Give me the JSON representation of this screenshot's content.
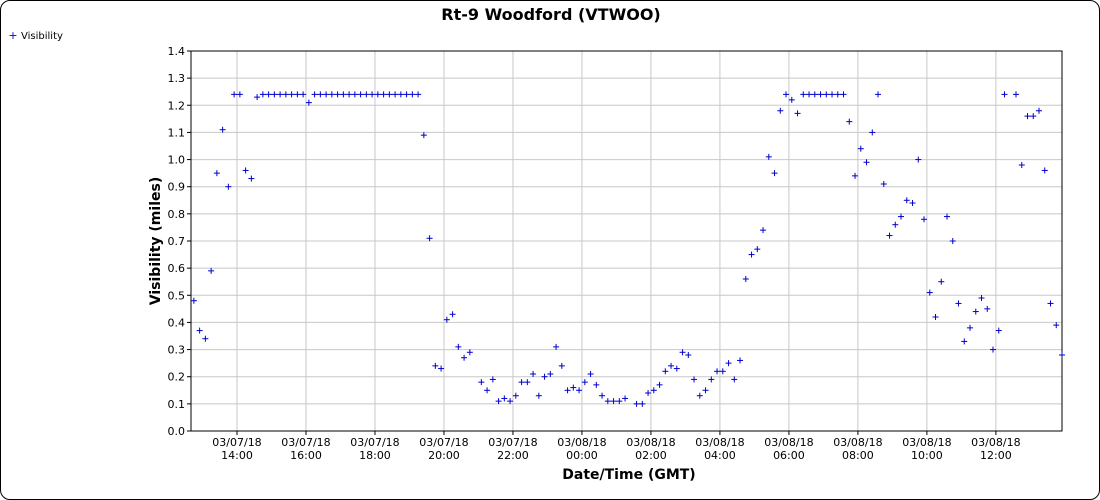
{
  "chart_data": {
    "type": "scatter",
    "title": "Rt-9 Woodford (VTWOO)",
    "xlabel": "Date/Time (GMT)",
    "ylabel": "Visibility (miles)",
    "ylim": [
      0,
      1.4
    ],
    "yticks": [
      "0.0",
      "0.1",
      "0.2",
      "0.3",
      "0.4",
      "0.5",
      "0.6",
      "0.7",
      "0.8",
      "0.9",
      "1.0",
      "1.1",
      "1.2",
      "1.3",
      "1.4"
    ],
    "xlim": [
      "03/07/18 12:40",
      "03/08/18 13:55"
    ],
    "xticks": [
      {
        "date": "03/07/18",
        "time": "14:00"
      },
      {
        "date": "03/07/18",
        "time": "16:00"
      },
      {
        "date": "03/07/18",
        "time": "18:00"
      },
      {
        "date": "03/07/18",
        "time": "20:00"
      },
      {
        "date": "03/07/18",
        "time": "22:00"
      },
      {
        "date": "03/08/18",
        "time": "00:00"
      },
      {
        "date": "03/08/18",
        "time": "02:00"
      },
      {
        "date": "03/08/18",
        "time": "04:00"
      },
      {
        "date": "03/08/18",
        "time": "06:00"
      },
      {
        "date": "03/08/18",
        "time": "08:00"
      },
      {
        "date": "03/08/18",
        "time": "10:00"
      },
      {
        "date": "03/08/18",
        "time": "12:00"
      }
    ],
    "grid": true,
    "legend_position": "top-left",
    "marker": "plus",
    "series": [
      {
        "name": "Visibility",
        "color": "#0000cc",
        "points": [
          [
            "03/07/18 12:45",
            0.48
          ],
          [
            "03/07/18 12:55",
            0.37
          ],
          [
            "03/07/18 13:05",
            0.34
          ],
          [
            "03/07/18 13:15",
            0.59
          ],
          [
            "03/07/18 13:25",
            0.95
          ],
          [
            "03/07/18 13:35",
            1.11
          ],
          [
            "03/07/18 13:45",
            0.9
          ],
          [
            "03/07/18 13:55",
            1.24
          ],
          [
            "03/07/18 14:05",
            1.24
          ],
          [
            "03/07/18 14:15",
            0.96
          ],
          [
            "03/07/18 14:25",
            0.93
          ],
          [
            "03/07/18 14:35",
            1.23
          ],
          [
            "03/07/18 14:45",
            1.24
          ],
          [
            "03/07/18 14:55",
            1.24
          ],
          [
            "03/07/18 15:05",
            1.24
          ],
          [
            "03/07/18 15:15",
            1.24
          ],
          [
            "03/07/18 15:25",
            1.24
          ],
          [
            "03/07/18 15:35",
            1.24
          ],
          [
            "03/07/18 15:45",
            1.24
          ],
          [
            "03/07/18 15:55",
            1.24
          ],
          [
            "03/07/18 16:05",
            1.21
          ],
          [
            "03/07/18 16:15",
            1.24
          ],
          [
            "03/07/18 16:25",
            1.24
          ],
          [
            "03/07/18 16:35",
            1.24
          ],
          [
            "03/07/18 16:45",
            1.24
          ],
          [
            "03/07/18 16:55",
            1.24
          ],
          [
            "03/07/18 17:05",
            1.24
          ],
          [
            "03/07/18 17:15",
            1.24
          ],
          [
            "03/07/18 17:25",
            1.24
          ],
          [
            "03/07/18 17:35",
            1.24
          ],
          [
            "03/07/18 17:45",
            1.24
          ],
          [
            "03/07/18 17:55",
            1.24
          ],
          [
            "03/07/18 18:05",
            1.24
          ],
          [
            "03/07/18 18:15",
            1.24
          ],
          [
            "03/07/18 18:25",
            1.24
          ],
          [
            "03/07/18 18:35",
            1.24
          ],
          [
            "03/07/18 18:45",
            1.24
          ],
          [
            "03/07/18 18:55",
            1.24
          ],
          [
            "03/07/18 19:05",
            1.24
          ],
          [
            "03/07/18 19:15",
            1.24
          ],
          [
            "03/07/18 19:25",
            1.09
          ],
          [
            "03/07/18 19:35",
            0.71
          ],
          [
            "03/07/18 19:45",
            0.24
          ],
          [
            "03/07/18 19:55",
            0.23
          ],
          [
            "03/07/18 20:05",
            0.41
          ],
          [
            "03/07/18 20:15",
            0.43
          ],
          [
            "03/07/18 20:25",
            0.31
          ],
          [
            "03/07/18 20:35",
            0.27
          ],
          [
            "03/07/18 20:45",
            0.29
          ],
          [
            "03/07/18 21:05",
            0.18
          ],
          [
            "03/07/18 21:15",
            0.15
          ],
          [
            "03/07/18 21:25",
            0.19
          ],
          [
            "03/07/18 21:35",
            0.11
          ],
          [
            "03/07/18 21:45",
            0.12
          ],
          [
            "03/07/18 21:55",
            0.11
          ],
          [
            "03/07/18 22:05",
            0.13
          ],
          [
            "03/07/18 22:15",
            0.18
          ],
          [
            "03/07/18 22:25",
            0.18
          ],
          [
            "03/07/18 22:35",
            0.21
          ],
          [
            "03/07/18 22:45",
            0.13
          ],
          [
            "03/07/18 22:55",
            0.2
          ],
          [
            "03/07/18 23:05",
            0.21
          ],
          [
            "03/07/18 23:15",
            0.31
          ],
          [
            "03/07/18 23:25",
            0.24
          ],
          [
            "03/07/18 23:35",
            0.15
          ],
          [
            "03/07/18 23:45",
            0.16
          ],
          [
            "03/07/18 23:55",
            0.15
          ],
          [
            "03/08/18 00:05",
            0.18
          ],
          [
            "03/08/18 00:15",
            0.21
          ],
          [
            "03/08/18 00:25",
            0.17
          ],
          [
            "03/08/18 00:35",
            0.13
          ],
          [
            "03/08/18 00:45",
            0.11
          ],
          [
            "03/08/18 00:55",
            0.11
          ],
          [
            "03/08/18 01:05",
            0.11
          ],
          [
            "03/08/18 01:15",
            0.12
          ],
          [
            "03/08/18 01:35",
            0.1
          ],
          [
            "03/08/18 01:45",
            0.1
          ],
          [
            "03/08/18 01:55",
            0.14
          ],
          [
            "03/08/18 02:05",
            0.15
          ],
          [
            "03/08/18 02:15",
            0.17
          ],
          [
            "03/08/18 02:25",
            0.22
          ],
          [
            "03/08/18 02:35",
            0.24
          ],
          [
            "03/08/18 02:45",
            0.23
          ],
          [
            "03/08/18 02:55",
            0.29
          ],
          [
            "03/08/18 03:05",
            0.28
          ],
          [
            "03/08/18 03:15",
            0.19
          ],
          [
            "03/08/18 03:25",
            0.13
          ],
          [
            "03/08/18 03:35",
            0.15
          ],
          [
            "03/08/18 03:45",
            0.19
          ],
          [
            "03/08/18 03:55",
            0.22
          ],
          [
            "03/08/18 04:05",
            0.22
          ],
          [
            "03/08/18 04:15",
            0.25
          ],
          [
            "03/08/18 04:25",
            0.19
          ],
          [
            "03/08/18 04:35",
            0.26
          ],
          [
            "03/08/18 04:45",
            0.56
          ],
          [
            "03/08/18 04:55",
            0.65
          ],
          [
            "03/08/18 05:05",
            0.67
          ],
          [
            "03/08/18 05:15",
            0.74
          ],
          [
            "03/08/18 05:25",
            1.01
          ],
          [
            "03/08/18 05:35",
            0.95
          ],
          [
            "03/08/18 05:45",
            1.18
          ],
          [
            "03/08/18 05:55",
            1.24
          ],
          [
            "03/08/18 06:05",
            1.22
          ],
          [
            "03/08/18 06:15",
            1.17
          ],
          [
            "03/08/18 06:25",
            1.24
          ],
          [
            "03/08/18 06:35",
            1.24
          ],
          [
            "03/08/18 06:45",
            1.24
          ],
          [
            "03/08/18 06:55",
            1.24
          ],
          [
            "03/08/18 07:05",
            1.24
          ],
          [
            "03/08/18 07:15",
            1.24
          ],
          [
            "03/08/18 07:25",
            1.24
          ],
          [
            "03/08/18 07:35",
            1.24
          ],
          [
            "03/08/18 07:45",
            1.14
          ],
          [
            "03/08/18 07:55",
            0.94
          ],
          [
            "03/08/18 08:05",
            1.04
          ],
          [
            "03/08/18 08:15",
            0.99
          ],
          [
            "03/08/18 08:25",
            1.1
          ],
          [
            "03/08/18 08:35",
            1.24
          ],
          [
            "03/08/18 08:45",
            0.91
          ],
          [
            "03/08/18 08:55",
            0.72
          ],
          [
            "03/08/18 09:05",
            0.76
          ],
          [
            "03/08/18 09:15",
            0.79
          ],
          [
            "03/08/18 09:25",
            0.85
          ],
          [
            "03/08/18 09:35",
            0.84
          ],
          [
            "03/08/18 09:45",
            1.0
          ],
          [
            "03/08/18 09:55",
            0.78
          ],
          [
            "03/08/18 10:05",
            0.51
          ],
          [
            "03/08/18 10:15",
            0.42
          ],
          [
            "03/08/18 10:25",
            0.55
          ],
          [
            "03/08/18 10:35",
            0.79
          ],
          [
            "03/08/18 10:45",
            0.7
          ],
          [
            "03/08/18 10:55",
            0.47
          ],
          [
            "03/08/18 11:05",
            0.33
          ],
          [
            "03/08/18 11:15",
            0.38
          ],
          [
            "03/08/18 11:25",
            0.44
          ],
          [
            "03/08/18 11:35",
            0.49
          ],
          [
            "03/08/18 11:45",
            0.45
          ],
          [
            "03/08/18 11:55",
            0.3
          ],
          [
            "03/08/18 12:05",
            0.37
          ],
          [
            "03/08/18 12:15",
            1.24
          ],
          [
            "03/08/18 12:35",
            1.24
          ],
          [
            "03/08/18 12:45",
            0.98
          ],
          [
            "03/08/18 12:55",
            1.16
          ],
          [
            "03/08/18 13:05",
            1.16
          ],
          [
            "03/08/18 13:15",
            1.18
          ],
          [
            "03/08/18 13:25",
            0.96
          ],
          [
            "03/08/18 13:35",
            0.47
          ],
          [
            "03/08/18 13:45",
            0.39
          ],
          [
            "03/08/18 13:55",
            0.28
          ]
        ]
      }
    ]
  }
}
